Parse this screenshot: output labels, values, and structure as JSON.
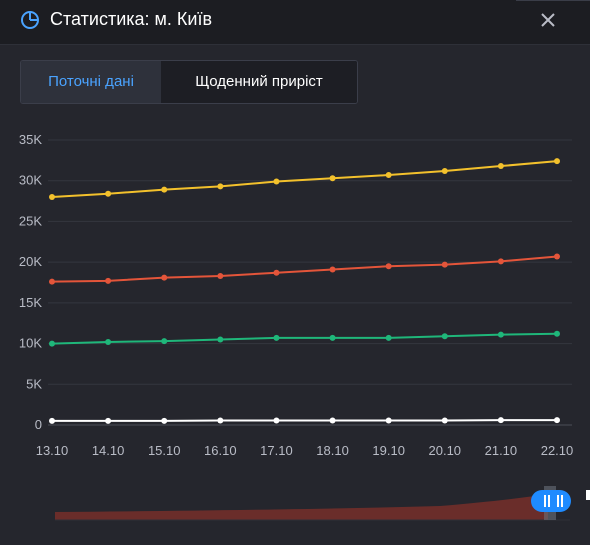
{
  "header": {
    "title": "Статистика: м. Київ",
    "title_icon": "pie-chart-icon",
    "close_icon": "close-icon"
  },
  "tabs": [
    {
      "label": "Поточні дані",
      "active": true
    },
    {
      "label": "Щоденний приріст",
      "active": false
    }
  ],
  "colors": {
    "accent": "#4aa3ff",
    "yellow": "#f3c12c",
    "orange": "#e4553a",
    "green": "#1fb77a",
    "white": "#ffffff"
  },
  "chart_data": {
    "type": "line",
    "categories": [
      "13.10",
      "14.10",
      "15.10",
      "16.10",
      "17.10",
      "18.10",
      "19.10",
      "20.10",
      "21.10",
      "22.10"
    ],
    "y_ticks": [
      "0",
      "5K",
      "10K",
      "15K",
      "20K",
      "25K",
      "30K",
      "35K"
    ],
    "ylim": [
      0,
      35000
    ],
    "series": [
      {
        "color": "#f3c12c",
        "values": [
          28000,
          28400,
          28900,
          29300,
          29900,
          30300,
          30700,
          31200,
          31800,
          32400
        ]
      },
      {
        "color": "#e4553a",
        "values": [
          17600,
          17700,
          18100,
          18300,
          18700,
          19100,
          19500,
          19700,
          20100,
          20700
        ]
      },
      {
        "color": "#1fb77a",
        "values": [
          10000,
          10200,
          10300,
          10500,
          10700,
          10700,
          10700,
          10900,
          11100,
          11200
        ]
      },
      {
        "color": "#ffffff",
        "values": [
          500,
          500,
          500,
          550,
          550,
          550,
          550,
          550,
          600,
          600
        ]
      }
    ],
    "grid": true,
    "legend": "none"
  }
}
